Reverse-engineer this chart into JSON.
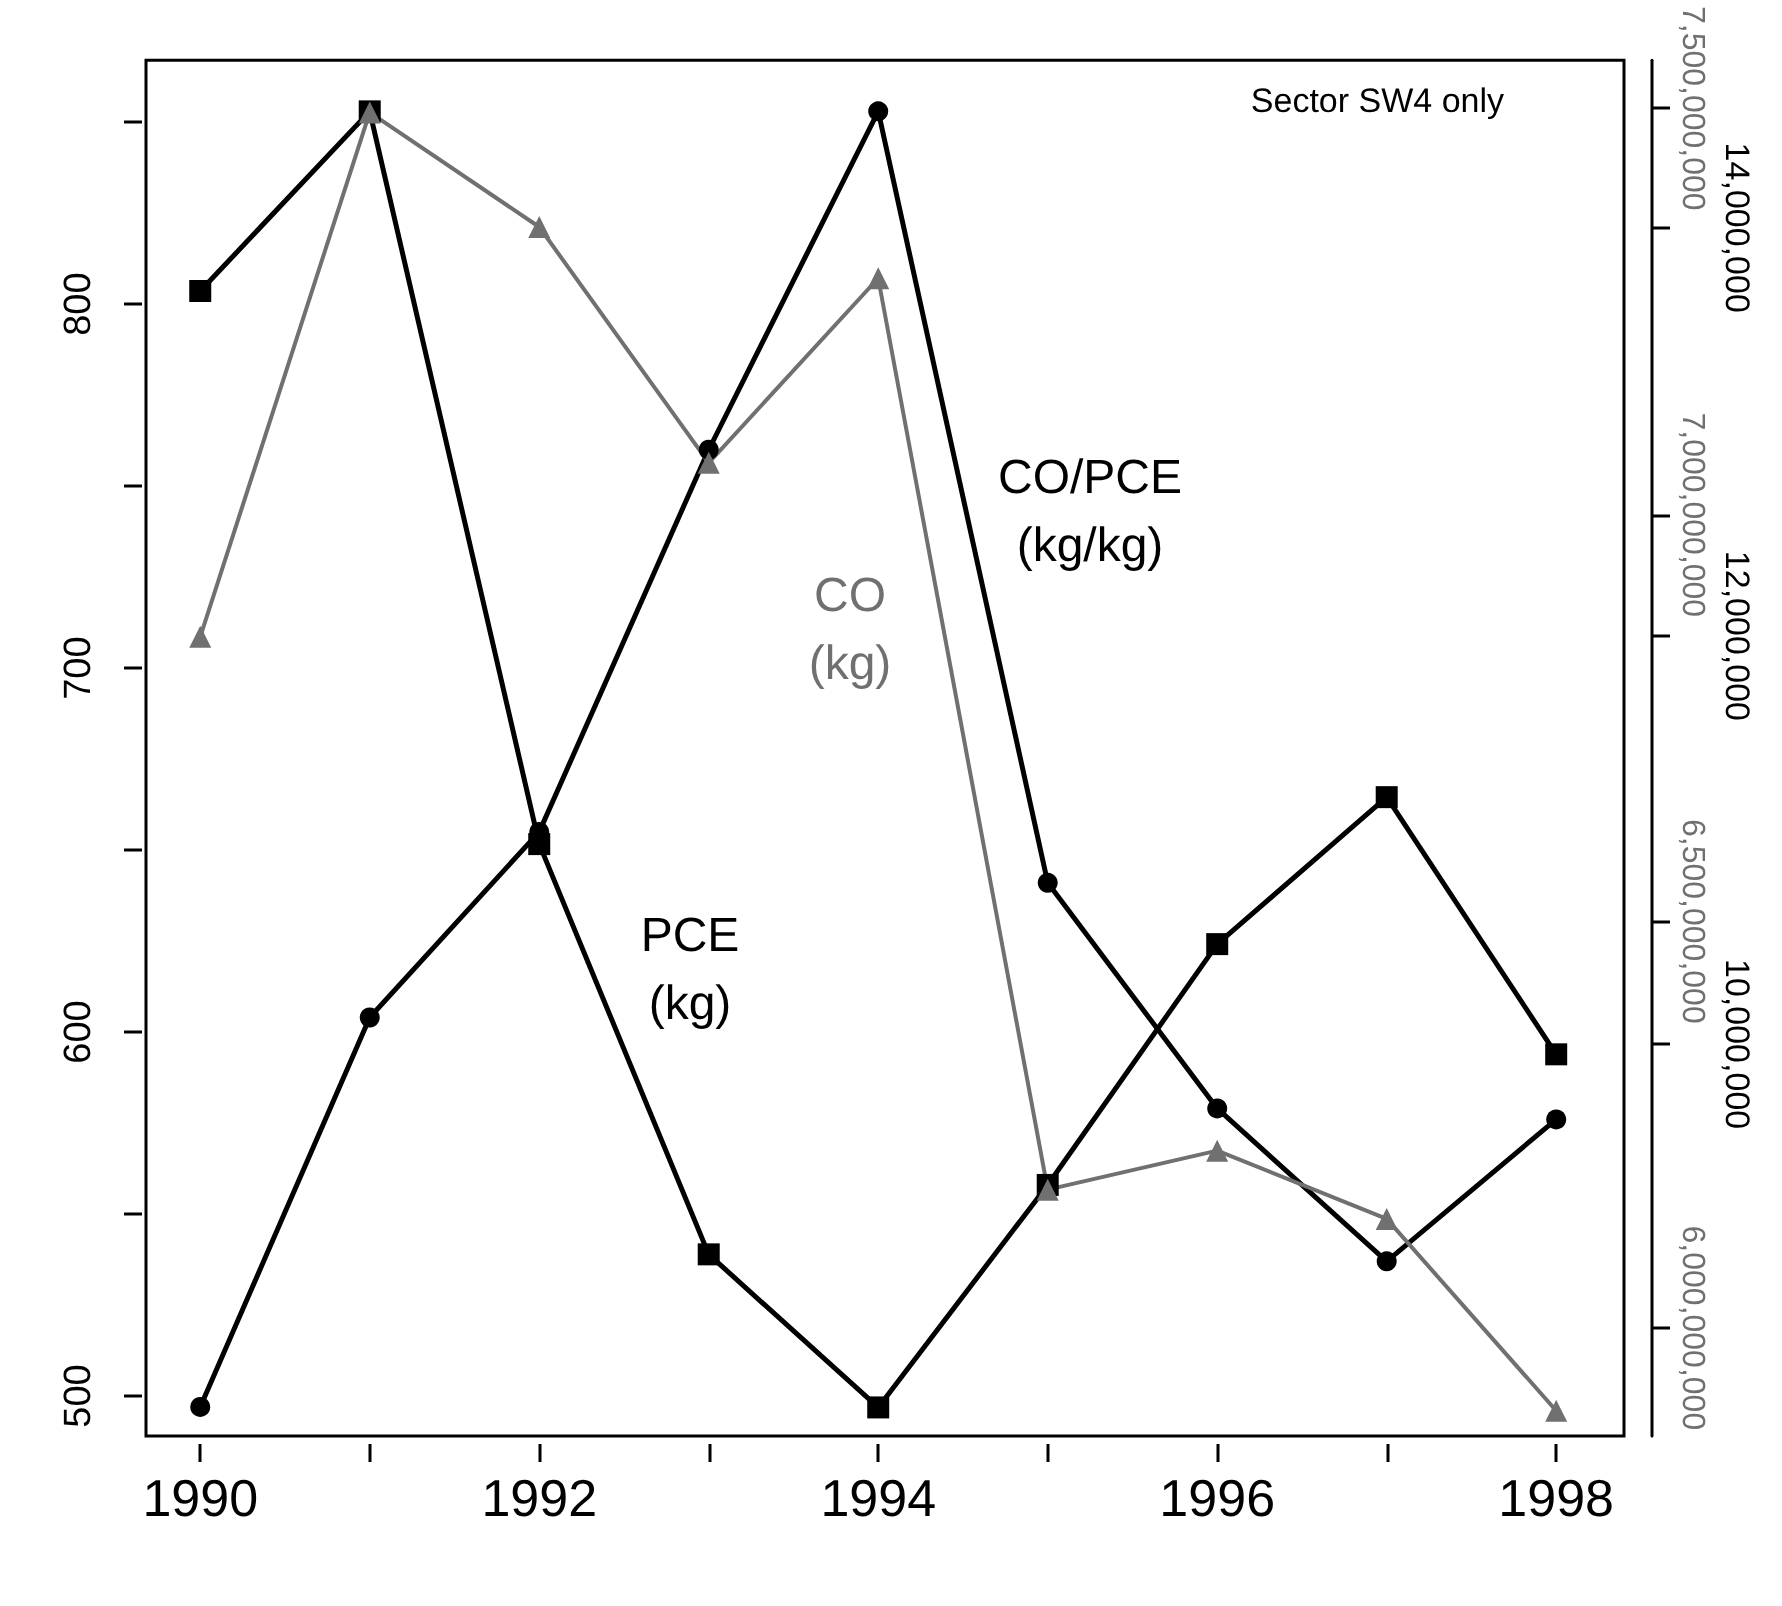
{
  "chart_data": {
    "type": "line",
    "x": [
      1990,
      1991,
      1992,
      1993,
      1994,
      1995,
      1996,
      1997,
      1998
    ],
    "xlim": [
      1989.68,
      1998.4
    ],
    "xticks": [
      1990,
      {
        "value": 1991,
        "label": null
      },
      1992,
      {
        "value": 1993,
        "label": null
      },
      1994,
      {
        "value": 1995,
        "label": null
      },
      1996,
      {
        "value": 1997,
        "label": null
      },
      1998
    ],
    "ylim": [
      489,
      867
    ],
    "yticks": [
      500,
      {
        "value": 550,
        "label": null
      },
      600,
      {
        "value": 650,
        "label": null
      },
      700,
      {
        "value": 750,
        "label": null
      },
      800,
      {
        "value": 850,
        "label": null
      }
    ],
    "y2lim": [
      8080000,
      14820000
    ],
    "y2ticks": [
      {
        "value": 10000000,
        "label": "10,000,000"
      },
      {
        "value": 12000000,
        "label": "12,000,000"
      },
      {
        "value": 14000000,
        "label": "14,000,000"
      }
    ],
    "y3lim": [
      5867000000,
      7559000000
    ],
    "y3ticks": [
      {
        "value": 6000000000,
        "label": "6,000,000,000"
      },
      {
        "value": 6500000000,
        "label": "6,500,000,000"
      },
      {
        "value": 7000000000,
        "label": "7,000,000,000"
      },
      {
        "value": 7500000000,
        "label": "7,500,000,000"
      }
    ],
    "series": [
      {
        "name": "CO/PCE\n(kg/kg)",
        "color": "#000000",
        "marker": "circle",
        "values": [
          497,
          604,
          655,
          760,
          853,
          641,
          579,
          537,
          576
        ]
      },
      {
        "name": "PCE\n(kg)",
        "color": "#000000",
        "marker": "square",
        "axis": "y2",
        "values": [
          13690000,
          14570000,
          10980000,
          8970000,
          8220000,
          9310000,
          10490000,
          11210000,
          9950000
        ]
      },
      {
        "name": "CO\n(kg)",
        "color": "#707070",
        "marker": "triangle",
        "axis": "y3",
        "values": [
          6850000000,
          7495000000,
          7354000000,
          7064000000,
          7291000000,
          6170000000,
          6218000000,
          6134000000,
          5898000000
        ]
      }
    ],
    "annotations": [
      "Sector SW4 only"
    ],
    "grid": false,
    "legend": false,
    "line_style": "solid"
  }
}
